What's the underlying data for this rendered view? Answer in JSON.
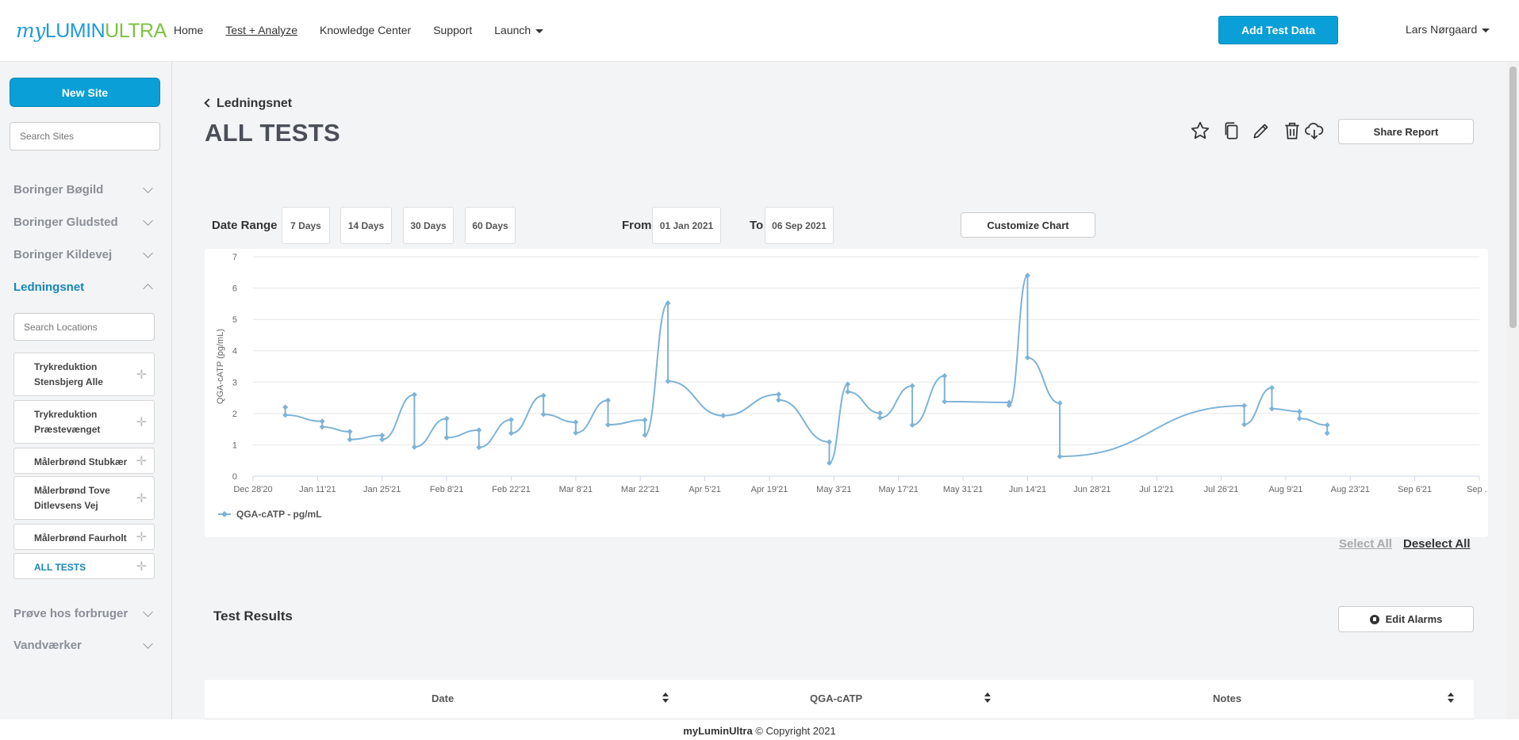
{
  "nav": {
    "logo_my": "my",
    "logo_lumin": "LUMIN",
    "logo_ultra": "ULTRA",
    "links": [
      "Home",
      "Test + Analyze",
      "Knowledge Center",
      "Support",
      "Launch"
    ],
    "add_test_label": "Add Test Data",
    "user_name": "Lars Nørgaard"
  },
  "sidebar": {
    "new_site_label": "New Site",
    "search_sites_placeholder": "Search Sites",
    "groups": [
      "Boringer Bøgild",
      "Boringer Gludsted",
      "Boringer Kildevej",
      "Ledningsnet",
      "Prøve hos forbruger",
      "Vandværker"
    ],
    "search_locations_placeholder": "Search Locations",
    "locations": [
      "Trykreduktion Stensbjerg Alle",
      "Trykreduktion Præstevænget",
      "Målerbrønd Stubkær",
      "Målerbrønd Tove Ditlevsens Vej",
      "Målerbrønd Faurholt",
      "ALL TESTS"
    ]
  },
  "header": {
    "back_label": "Ledningsnet",
    "page_title": "ALL TESTS",
    "share_label": "Share Report"
  },
  "controls": {
    "date_range_label": "Date Range",
    "ranges": [
      "7 Days",
      "14 Days",
      "30 Days",
      "60 Days"
    ],
    "from_label": "From",
    "from_value": "01 Jan 2021",
    "to_label": "To",
    "to_value": "06 Sep 2021",
    "customize_label": "Customize Chart"
  },
  "chart_data": {
    "type": "line",
    "ylabel": "QGA-cATP (pg/mL)",
    "ylim": [
      0,
      7
    ],
    "yticks": [
      0,
      1,
      2,
      3,
      4,
      5,
      6,
      7
    ],
    "xtick_labels": [
      "Dec 28'20",
      "Jan 11'21",
      "Jan 25'21",
      "Feb 8'21",
      "Feb 22'21",
      "Mar 8'21",
      "Mar 22'21",
      "Apr 5'21",
      "Apr 19'21",
      "May 3'21",
      "May 17'21",
      "May 31'21",
      "Jun 14'21",
      "Jun 28'21",
      "Jul 12'21",
      "Jul 26'21",
      "Aug 9'21",
      "Aug 23'21",
      "Sep 6'21",
      "Sep ..."
    ],
    "x_start": "2020-12-28",
    "x_end": "2021-09-20",
    "grid": true,
    "legend": "bottom-left",
    "series": [
      {
        "name": "QGA-cATP - pg/mL",
        "color": "#7db3d8",
        "points": [
          [
            "2021-01-04",
            2.2
          ],
          [
            "2021-01-04",
            1.95
          ],
          [
            "2021-01-12",
            1.75
          ],
          [
            "2021-01-12",
            1.57
          ],
          [
            "2021-01-18",
            1.42
          ],
          [
            "2021-01-18",
            1.17
          ],
          [
            "2021-01-25",
            1.3
          ],
          [
            "2021-01-25",
            1.17
          ],
          [
            "2021-02-01",
            2.6
          ],
          [
            "2021-02-01",
            0.93
          ],
          [
            "2021-02-08",
            1.84
          ],
          [
            "2021-02-08",
            1.23
          ],
          [
            "2021-02-15",
            1.47
          ],
          [
            "2021-02-15",
            0.92
          ],
          [
            "2021-02-22",
            1.8
          ],
          [
            "2021-02-22",
            1.37
          ],
          [
            "2021-03-01",
            2.57
          ],
          [
            "2021-03-01",
            1.97
          ],
          [
            "2021-03-08",
            1.72
          ],
          [
            "2021-03-08",
            1.38
          ],
          [
            "2021-03-15",
            2.42
          ],
          [
            "2021-03-15",
            1.64
          ],
          [
            "2021-03-23",
            1.79
          ],
          [
            "2021-03-23",
            1.31
          ],
          [
            "2021-03-28",
            5.52
          ],
          [
            "2021-03-28",
            3.03
          ],
          [
            "2021-04-09",
            1.93
          ],
          [
            "2021-04-21",
            2.61
          ],
          [
            "2021-04-21",
            2.43
          ],
          [
            "2021-05-02",
            1.09
          ],
          [
            "2021-05-02",
            0.42
          ],
          [
            "2021-05-06",
            2.93
          ],
          [
            "2021-05-06",
            2.69
          ],
          [
            "2021-05-13",
            2.01
          ],
          [
            "2021-05-13",
            1.86
          ],
          [
            "2021-05-20",
            2.88
          ],
          [
            "2021-05-20",
            1.63
          ],
          [
            "2021-05-27",
            3.2
          ],
          [
            "2021-05-27",
            2.38
          ],
          [
            "2021-06-10",
            2.35
          ],
          [
            "2021-06-10",
            2.26
          ],
          [
            "2021-06-14",
            6.4
          ],
          [
            "2021-06-14",
            3.78
          ],
          [
            "2021-06-21",
            2.33
          ],
          [
            "2021-06-21",
            0.63
          ],
          [
            "2021-07-31",
            2.25
          ],
          [
            "2021-07-31",
            1.65
          ],
          [
            "2021-08-06",
            2.82
          ],
          [
            "2021-08-06",
            2.15
          ],
          [
            "2021-08-12",
            2.06
          ],
          [
            "2021-08-12",
            1.84
          ],
          [
            "2021-08-18",
            1.63
          ],
          [
            "2021-08-18",
            1.37
          ]
        ]
      }
    ]
  },
  "links": {
    "select_all": "Select All",
    "deselect_all": "Deselect All"
  },
  "results": {
    "title": "Test Results",
    "edit_alarms_label": "Edit Alarms",
    "columns": [
      "Date",
      "QGA-cATP",
      "Notes"
    ]
  },
  "footer": {
    "brand": "myLuminUltra",
    "copyright": "© Copyright 2021"
  }
}
